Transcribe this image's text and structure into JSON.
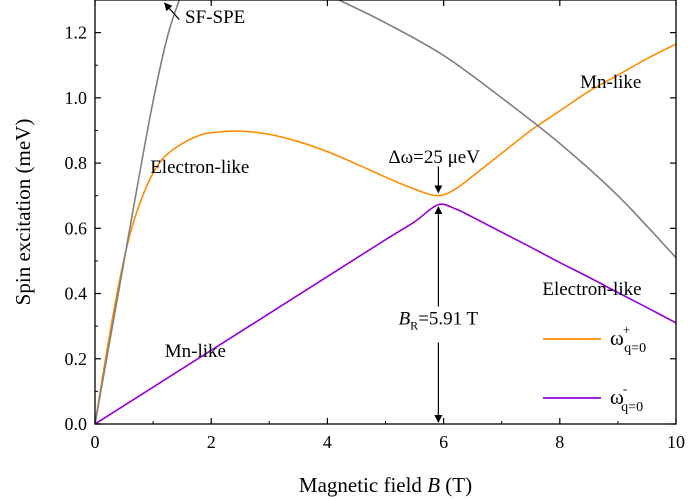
{
  "chart_data": {
    "type": "line",
    "xlabel": "Magnetic field B (T)",
    "ylabel": "Spin excitation (meV)",
    "xlim": [
      0,
      10
    ],
    "ylim": [
      0,
      1.3
    ],
    "xticks": [
      "0",
      "2",
      "4",
      "6",
      "8",
      "10"
    ],
    "yticks": [
      "0.0",
      "0.2",
      "0.4",
      "0.6",
      "0.8",
      "1.0",
      "1.2"
    ],
    "grid": false,
    "legend_position": "bottom-right",
    "legend": [
      {
        "label": "ω",
        "sup": "+",
        "sub": "q=0",
        "color": "#ff8c00"
      },
      {
        "label": "ω",
        "sup": "-",
        "sub": "q=0",
        "color": "#9400d3"
      }
    ],
    "series": [
      {
        "name": "ω+ q=0",
        "color": "#ff8c00",
        "x": [
          0,
          0.2,
          0.4,
          0.6,
          0.8,
          1.0,
          1.2,
          1.5,
          1.8,
          2.0,
          2.5,
          3.0,
          3.5,
          4.0,
          4.5,
          5.0,
          5.5,
          5.9,
          6.2,
          6.5,
          7.0,
          7.5,
          8.0,
          8.5,
          9.0,
          9.5,
          10.0
        ],
        "y": [
          0,
          0.22,
          0.42,
          0.58,
          0.69,
          0.77,
          0.82,
          0.86,
          0.885,
          0.893,
          0.898,
          0.888,
          0.866,
          0.835,
          0.797,
          0.757,
          0.72,
          0.7,
          0.72,
          0.76,
          0.83,
          0.9,
          0.96,
          1.02,
          1.07,
          1.12,
          1.165
        ]
      },
      {
        "name": "ω- q=0",
        "color": "#9400d3",
        "x": [
          0,
          1,
          2,
          3,
          4,
          5,
          5.5,
          5.9,
          6.2,
          6.5,
          7,
          7.5,
          8,
          8.5,
          9,
          9.5,
          10
        ],
        "y": [
          0,
          0.113,
          0.226,
          0.339,
          0.452,
          0.565,
          0.62,
          0.672,
          0.66,
          0.634,
          0.588,
          0.542,
          0.495,
          0.45,
          0.403,
          0.357,
          0.31
        ]
      },
      {
        "name": "SF-SPE",
        "color": "#808080",
        "x": [
          0,
          0.25,
          0.5,
          0.75,
          1.0,
          1.25,
          1.45
        ],
        "y": [
          0,
          0.25,
          0.5,
          0.75,
          0.99,
          1.19,
          1.3
        ]
      },
      {
        "name": "SF-SPE branch 2",
        "color": "#808080",
        "x": [
          4.2,
          5,
          6,
          7,
          8,
          9,
          10
        ],
        "y": [
          1.3,
          1.23,
          1.13,
          1.0,
          0.86,
          0.7,
          0.51
        ]
      }
    ],
    "annotations": [
      {
        "text": "SF-SPE",
        "x": 1.55,
        "y": 1.23
      },
      {
        "text": "Mn-like",
        "x": 8.35,
        "y": 1.03
      },
      {
        "text": "Electron-like",
        "x": 0.95,
        "y": 0.77
      },
      {
        "text": "Δω=25 μeV",
        "x": 5.05,
        "y": 0.8
      },
      {
        "text": "Electron-like",
        "x": 7.7,
        "y": 0.395
      },
      {
        "text": "Mn-like",
        "x": 1.2,
        "y": 0.205
      }
    ],
    "resonance_label": {
      "base": "B",
      "sub": "R",
      "rest": "=5.91 T"
    },
    "resonance_x": 5.91
  }
}
